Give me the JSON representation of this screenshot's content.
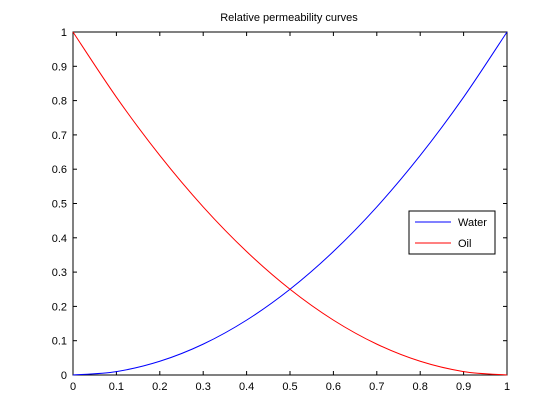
{
  "chart_data": {
    "type": "line",
    "title": "Relative permeability curves",
    "xlabel": "",
    "ylabel": "",
    "xlim": [
      0,
      1
    ],
    "ylim": [
      0,
      1
    ],
    "x_ticks": [
      "0",
      "0.1",
      "0.2",
      "0.3",
      "0.4",
      "0.5",
      "0.6",
      "0.7",
      "0.8",
      "0.9",
      "1"
    ],
    "y_ticks": [
      "0",
      "0.1",
      "0.2",
      "0.3",
      "0.4",
      "0.5",
      "0.6",
      "0.7",
      "0.8",
      "0.9",
      "1"
    ],
    "grid": false,
    "legend_position": "right",
    "series": [
      {
        "name": "Water",
        "color": "#0000ff",
        "x": [
          0,
          0.1,
          0.2,
          0.3,
          0.4,
          0.5,
          0.6,
          0.7,
          0.8,
          0.9,
          1.0
        ],
        "y": [
          0,
          0.01,
          0.04,
          0.09,
          0.16,
          0.25,
          0.36,
          0.49,
          0.64,
          0.81,
          1.0
        ]
      },
      {
        "name": "Oil",
        "color": "#ff0000",
        "x": [
          0,
          0.1,
          0.2,
          0.3,
          0.4,
          0.5,
          0.6,
          0.7,
          0.8,
          0.9,
          1.0
        ],
        "y": [
          1.0,
          0.81,
          0.64,
          0.49,
          0.36,
          0.25,
          0.16,
          0.09,
          0.04,
          0.01,
          0
        ]
      }
    ]
  }
}
